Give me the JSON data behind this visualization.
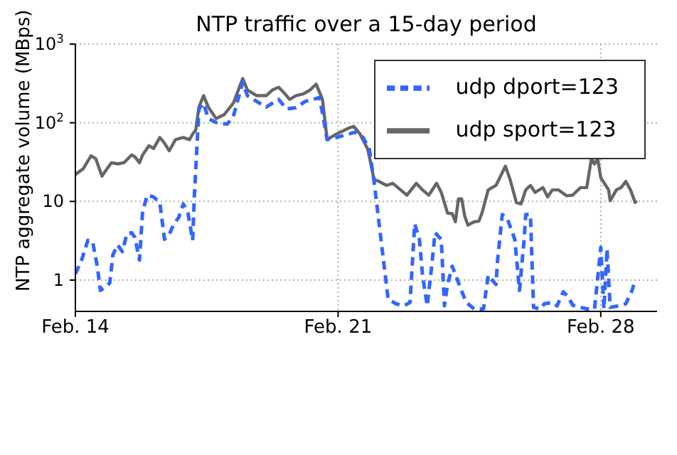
{
  "chart_data": {
    "type": "line",
    "title": "NTP traffic over a 15-day period",
    "ylabel": "NTP aggregate volume (MBps)",
    "xlim": [
      "--02-14T00:00",
      "--03-01T12:00"
    ],
    "xticks": [
      {
        "value": "--02-14",
        "label": "Feb. 14"
      },
      {
        "value": "--02-21",
        "label": "Feb. 21"
      },
      {
        "value": "--02-28",
        "label": "Feb. 28"
      }
    ],
    "ylim": [
      0.4,
      1000
    ],
    "yticks": [
      1,
      10,
      {
        "value": 100,
        "label": "10$^{2}$"
      },
      {
        "value": 1000,
        "label": "10$^{3}$"
      }
    ],
    "log": "y",
    "grid": true,
    "legend": "top right",
    "series": [
      {
        "name": "udp sport=123",
        "color": "#666666",
        "line_style": "solid",
        "x": [
          "--02-14T00:00",
          "--02-14T05:00",
          "--02-14T10:00",
          "--02-14T13:00",
          "--02-14T17:00",
          "--02-14T19:00",
          "--02-14T23:00",
          "--02-15T03:00",
          "--02-15T07:00",
          "--02-15T12:00",
          "--02-15T14:00",
          "--02-15T17:00",
          "--02-15T19:00",
          "--02-15T23:00",
          "--02-16T02:00",
          "--02-16T06:00",
          "--02-16T09:00",
          "--02-16T12:00",
          "--02-16T16:00",
          "--02-16T21:00",
          "--02-17T01:00",
          "--02-17T03:00",
          "--02-17T05:00",
          "--02-17T07:00",
          "--02-17T10:00",
          "--02-17T13:00",
          "--02-17T18:00",
          "--02-17T23:00",
          "--02-18T05:00",
          "--02-18T11:00",
          "--02-18T14:00",
          "--02-18T20:00",
          "--02-19T02:00",
          "--02-19T06:00",
          "--02-19T10:00",
          "--02-19T14:00",
          "--02-19T17:00",
          "--02-19T21:00",
          "--02-20T02:00",
          "--02-20T06:00",
          "--02-20T10:00",
          "--02-20T14:00",
          "--02-20T17:00",
          "--02-20T23:00",
          "--02-21T07:00",
          "--02-21T10:00",
          "--02-21T14:00",
          "--02-21T19:00",
          "--02-21T23:00",
          "--02-22T02:00",
          "--02-22T07:00",
          "--02-22T11:00",
          "--02-22T16:00",
          "--02-22T20:00",
          "--02-23T02:00",
          "--02-23T06:00",
          "--02-23T10:00",
          "--02-23T15:00",
          "--02-23T18:00",
          "--02-23T22:00",
          "--02-24T01:00",
          "--02-24T03:00",
          "--02-24T05:00",
          "--02-24T07:00",
          "--02-24T09:00",
          "--02-24T11:00",
          "--02-24T15:00",
          "--02-24T18:00",
          "--02-24T20:00",
          "--02-25T00:00",
          "--02-25T05:00",
          "--02-25T11:00",
          "--02-25T14:00",
          "--02-25T18:00",
          "--02-25T21:00",
          "--02-26T00:00",
          "--02-26T03:00",
          "--02-26T06:00",
          "--02-26T11:00",
          "--02-26T14:00",
          "--02-26T17:00",
          "--02-26T21:00",
          "--02-27T02:00",
          "--02-27T06:00",
          "--02-27T11:00",
          "--02-27T15:00",
          "--02-27T18:00",
          "--02-27T20:00",
          "--02-27T22:00",
          "--02-28T00:00",
          "--02-28T05:00",
          "--02-28T06:00",
          "--02-28T10:00",
          "--02-28T13:00",
          "--02-28T16:00",
          "--02-28T19:00",
          "--02-28T22:00",
          "--02-28T23:00"
        ],
        "values": [
          22,
          26,
          38,
          35,
          21,
          24,
          31,
          30,
          31,
          39,
          37,
          31,
          39,
          51,
          47,
          65,
          55,
          44,
          61,
          65,
          61,
          72,
          81,
          158,
          221,
          158,
          113,
          126,
          177,
          365,
          261,
          221,
          221,
          261,
          283,
          234,
          198,
          221,
          234,
          261,
          309,
          198,
          61,
          72,
          86,
          90,
          72,
          46,
          19,
          18,
          16,
          17,
          14,
          12,
          17,
          14,
          12,
          17,
          13,
          7.1,
          7,
          5.5,
          10.8,
          10.8,
          6.5,
          5,
          5.5,
          5.6,
          7.1,
          14,
          16,
          28,
          19,
          9.7,
          9.3,
          14,
          16,
          13,
          15,
          11.4,
          14,
          14,
          11.8,
          12,
          15,
          15,
          35,
          30,
          35,
          20,
          14,
          10.2,
          14,
          15,
          18,
          14,
          9.7,
          10.2
        ]
      },
      {
        "name": "udp dport=123",
        "color": "#3366ff",
        "line_style": "dashed",
        "x": [
          "--02-14T00:00",
          "--02-14T04:00",
          "--02-14T08:00",
          "--02-14T11:00",
          "--02-14T14:00",
          "--02-14T16:00",
          "--02-14T19:00",
          "--02-14T22:00",
          "--02-15T00:00",
          "--02-15T03:00",
          "--02-15T06:00",
          "--02-15T09:00",
          "--02-15T12:00",
          "--02-15T14:00",
          "--02-15T17:00",
          "--02-15T19:00",
          "--02-15T22:00",
          "--02-16T02:00",
          "--02-16T06:00",
          "--02-16T09:00",
          "--02-16T12:00",
          "--02-16T15:00",
          "--02-16T18:00",
          "--02-16T21:00",
          "--02-17T00:00",
          "--02-17T03:00",
          "--02-17T04:00",
          "--02-17T07:00",
          "--02-17T10:00",
          "--02-17T13:00",
          "--02-17T18:00",
          "--02-18T01:00",
          "--02-18T05:00",
          "--02-18T11:00",
          "--02-18T14:00",
          "--02-18T20:00",
          "--02-19T02:00",
          "--02-19T06:00",
          "--02-19T10:00",
          "--02-19T15:00",
          "--02-19T21:00",
          "--02-20T03:00",
          "--02-20T08:00",
          "--02-20T12:00",
          "--02-20T14:00",
          "--02-20T17:00",
          "--02-20T23:00",
          "--02-21T07:00",
          "--02-21T11:00",
          "--02-21T16:00",
          "--02-21T20:00",
          "--02-21T23:00",
          "--02-22T02:00",
          "--02-22T05:00",
          "--02-22T08:00",
          "--02-22T13:00",
          "--02-22T18:00",
          "--02-22T22:00",
          "--02-23T01:00",
          "--02-23T04:00",
          "--02-23T06:00",
          "--02-23T09:00",
          "--02-23T12:00",
          "--02-23T14:00",
          "--02-23T18:00",
          "--02-23T20:00",
          "--02-23T22:00",
          "--02-24T01:00",
          "--02-24T04:00",
          "--02-24T06:00",
          "--02-24T10:00",
          "--02-24T15:00",
          "--02-24T21:00",
          "--02-25T00:00",
          "--02-25T05:00",
          "--02-25T06:00",
          "--02-25T09:00",
          "--02-25T12:00",
          "--02-25T17:00",
          "--02-25T20:00",
          "--02-25T23:00",
          "--02-26T00:00",
          "--02-26T03:00",
          "--02-26T05:00",
          "--02-26T09:00",
          "--02-26T12:00",
          "--02-26T17:00",
          "--02-26T20:00",
          "--02-27T00:00",
          "--02-27T03:00",
          "--02-27T06:00",
          "--02-27T11:00",
          "--02-27T15:00",
          "--02-27T20:00",
          "--02-28T00:00",
          "--02-28T02:00",
          "--02-28T04:00",
          "--02-28T06:00",
          "--02-28T11:00",
          "--02-28T16:00",
          "--02-28T20:00",
          "--02-28T22:00"
        ],
        "values": [
          1.2,
          1.8,
          3.2,
          3.1,
          1.5,
          0.74,
          0.81,
          0.92,
          2.1,
          2.8,
          2.3,
          3.9,
          4,
          3.5,
          1.8,
          7.5,
          12,
          11.4,
          9.7,
          3.3,
          3.8,
          5.2,
          6.2,
          9.3,
          7.1,
          3.2,
          10.8,
          150,
          177,
          113,
          101,
          96,
          120,
          327,
          221,
          187,
          158,
          177,
          198,
          150,
          155,
          187,
          198,
          209,
          134,
          61,
          65,
          72,
          76,
          65,
          46,
          18,
          5.7,
          1.8,
          0.57,
          0.5,
          0.47,
          0.52,
          5.2,
          3.3,
          1.15,
          0.47,
          1.6,
          4,
          3.3,
          0.47,
          0.88,
          1.5,
          1.05,
          0.81,
          0.52,
          0.43,
          0.43,
          1.15,
          0.88,
          1.8,
          6.8,
          6.2,
          3.3,
          0.74,
          3.3,
          6.8,
          6.8,
          0.45,
          0.43,
          0.5,
          0.52,
          0.47,
          0.71,
          0.62,
          0.48,
          0.45,
          0.43,
          0.43,
          2.6,
          0.43,
          2.5,
          0.45,
          0.47,
          0.5,
          0.74,
          1
        ]
      }
    ]
  }
}
